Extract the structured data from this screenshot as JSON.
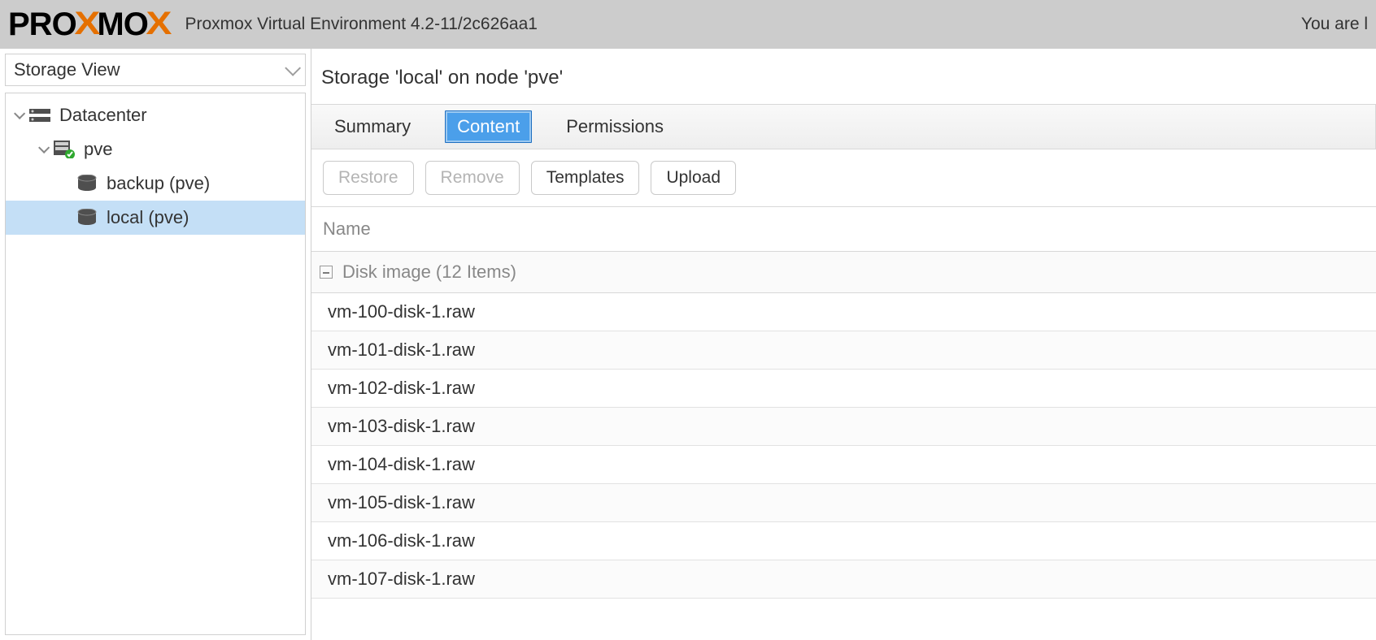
{
  "header": {
    "title": "Proxmox Virtual Environment 4.2-11/2c626aa1",
    "right_text": "You are l",
    "logo": {
      "a": "PRO",
      "x": "X",
      "b": "MO",
      "x2": "X"
    }
  },
  "sidebar": {
    "view_label": "Storage View",
    "tree": {
      "root": {
        "label": "Datacenter"
      },
      "node": {
        "label": "pve"
      },
      "storages": [
        {
          "label": "backup (pve)"
        },
        {
          "label": "local (pve)",
          "selected": true
        }
      ]
    }
  },
  "page": {
    "title": "Storage 'local' on node 'pve'",
    "tabs": [
      {
        "label": "Summary",
        "active": false
      },
      {
        "label": "Content",
        "active": true
      },
      {
        "label": "Permissions",
        "active": false
      }
    ],
    "toolbar": [
      {
        "label": "Restore",
        "disabled": true
      },
      {
        "label": "Remove",
        "disabled": true
      },
      {
        "label": "Templates",
        "disabled": false
      },
      {
        "label": "Upload",
        "disabled": false
      }
    ],
    "column_header": "Name",
    "group": {
      "label": "Disk image (12 Items)"
    },
    "rows": [
      "vm-100-disk-1.raw",
      "vm-101-disk-1.raw",
      "vm-102-disk-1.raw",
      "vm-103-disk-1.raw",
      "vm-104-disk-1.raw",
      "vm-105-disk-1.raw",
      "vm-106-disk-1.raw",
      "vm-107-disk-1.raw"
    ]
  },
  "colors": {
    "accent": "#4b9fea",
    "accent_border": "#1f6fc0",
    "topbar_bg": "#cccccc",
    "selected_bg": "#c4dff6",
    "border": "#d0d0d0",
    "text_muted": "#888888",
    "logo_orange": "#e57000"
  }
}
